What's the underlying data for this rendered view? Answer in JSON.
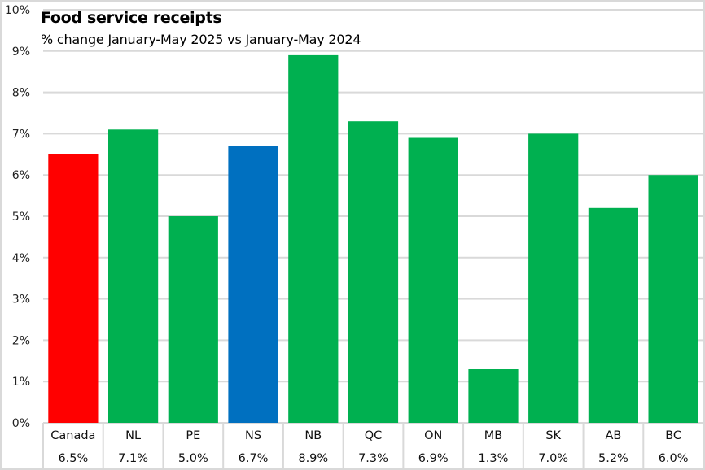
{
  "chart_data": {
    "type": "bar",
    "title": "Food service receipts",
    "subtitle": "% change January-May 2025 vs January-May 2024",
    "xlabel": "",
    "ylabel": "",
    "ylim": [
      0,
      10
    ],
    "yticks": [
      0,
      1,
      2,
      3,
      4,
      5,
      6,
      7,
      8,
      9,
      10
    ],
    "ytick_labels": [
      "0%",
      "1%",
      "2%",
      "3%",
      "4%",
      "5%",
      "6%",
      "7%",
      "8%",
      "9%",
      "10%"
    ],
    "grid": true,
    "legend": "none",
    "categories": [
      "Canada",
      "NL",
      "PE",
      "NS",
      "NB",
      "QC",
      "ON",
      "MB",
      "SK",
      "AB",
      "BC"
    ],
    "values": [
      6.5,
      7.1,
      5.0,
      6.7,
      8.9,
      7.3,
      6.9,
      1.3,
      7.0,
      5.2,
      6.0
    ],
    "value_labels": [
      "6.5%",
      "7.1%",
      "5.0%",
      "6.7%",
      "8.9%",
      "7.3%",
      "6.9%",
      "1.3%",
      "7.0%",
      "5.2%",
      "6.0%"
    ],
    "bar_colors": [
      "#ff0000",
      "#00b050",
      "#00b050",
      "#0070c0",
      "#00b050",
      "#00b050",
      "#00b050",
      "#00b050",
      "#00b050",
      "#00b050",
      "#00b050"
    ],
    "data_table": true
  },
  "colors": {
    "grid": "#d9d9d9",
    "canada": "#ff0000",
    "nova_scotia": "#0070c0",
    "other": "#00b050"
  }
}
